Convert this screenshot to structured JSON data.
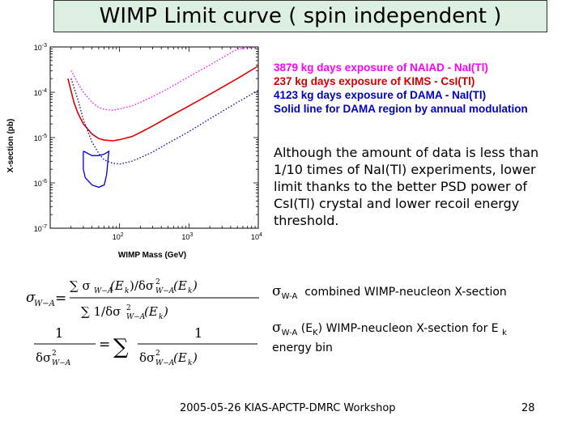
{
  "title": "WIMP Limit curve ( spin independent )",
  "chart_data": {
    "type": "line",
    "xlabel": "WIMP Mass (GeV)",
    "ylabel": "X-section (pb)",
    "x_scale": "log",
    "y_scale": "log",
    "xlim": [
      10,
      10000
    ],
    "ylim": [
      1e-07,
      0.001
    ],
    "x_ticks": [
      {
        "value": 100,
        "base": "10",
        "exp": "2"
      },
      {
        "value": 1000,
        "base": "10",
        "exp": "3"
      },
      {
        "value": 10000,
        "base": "10",
        "exp": "4"
      }
    ],
    "y_ticks": [
      {
        "value": 0.001,
        "base": "10",
        "exp": "-3"
      },
      {
        "value": 0.0001,
        "base": "10",
        "exp": "-4"
      },
      {
        "value": 1e-05,
        "base": "10",
        "exp": "-5"
      },
      {
        "value": 1e-06,
        "base": "10",
        "exp": "-6"
      },
      {
        "value": 1e-07,
        "base": "10",
        "exp": "-7"
      }
    ],
    "series": [
      {
        "color": "#ff00ff",
        "style": "dotted",
        "x": [
          20,
          25,
          30,
          40,
          50,
          60,
          80,
          100,
          150,
          200,
          300,
          500,
          1000,
          2000,
          5000,
          10000
        ],
        "y": [
          0.0003,
          0.00016,
          0.0001,
          6e-05,
          4.6e-05,
          4.2e-05,
          4e-05,
          4.3e-05,
          5e-05,
          6e-05,
          8e-05,
          0.00012,
          0.00022,
          0.0004,
          0.0009,
          0.0015
        ]
      },
      {
        "color": "#e00000",
        "style": "solid",
        "x": [
          18,
          22,
          25,
          30,
          40,
          50,
          60,
          80,
          100,
          150,
          200,
          300,
          500,
          1000,
          2000,
          5000,
          10000
        ],
        "y": [
          0.0002,
          6e-05,
          3.5e-05,
          2e-05,
          1.2e-05,
          9.5e-06,
          8.8e-06,
          8.5e-06,
          9e-06,
          1.05e-05,
          1.3e-05,
          1.8e-05,
          2.8e-05,
          5e-05,
          9e-05,
          0.0002,
          0.00038
        ]
      },
      {
        "color": "#00008b",
        "style": "dotted",
        "x": [
          20,
          25,
          30,
          40,
          50,
          60,
          80,
          100,
          150,
          200,
          300,
          500,
          1000,
          2000,
          5000,
          10000
        ],
        "y": [
          0.0002,
          7e-05,
          2.5e-05,
          8e-06,
          4.5e-06,
          3.2e-06,
          2.7e-06,
          2.6e-06,
          3e-06,
          3.6e-06,
          4.8e-06,
          7.5e-06,
          1.35e-05,
          2.6e-05,
          6e-05,
          0.00011
        ]
      },
      {
        "color": "#0000cc",
        "style": "solid-region",
        "x": [
          30,
          32,
          40,
          50,
          60,
          70,
          65,
          60,
          50,
          40,
          32,
          30,
          30
        ],
        "y": [
          5e-06,
          4.8e-06,
          4e-06,
          4e-06,
          4.3e-06,
          5e-06,
          1.5e-06,
          9e-07,
          8e-07,
          9e-07,
          1.3e-06,
          2e-06,
          5e-06
        ]
      }
    ]
  },
  "legend": [
    "3879 kg days exposure of NAIAD - NaI(Tl)",
    "237 kg days exposure of KIMS - CsI(Tl)",
    "4123 kg days exposure of DAMA - NaI(Tl)",
    "Solid line for DAMA region by annual modulation"
  ],
  "note": "Although the amount of data is less than 1/10 times of NaI(Tl) experiments, lower limit thanks to the better PSD power of CsI(Tl) crystal and lower recoil energy threshold.",
  "definitions": {
    "d1_symbol": "σ",
    "d1_sub": "W-A",
    "d1_text": "combined WIMP-neucleon X-section",
    "d2_symbol": "σ",
    "d2_sub": "W-A",
    "d2_mid": "(E",
    "d2_sub2": "K",
    "d2_text": ") WIMP-neucleon X-section for E",
    "d2_sub3": "k",
    "d2_line2": "energy bin"
  },
  "footer": "2005-05-26 KIAS-APCTP-DMRC Workshop",
  "page_number": "28"
}
